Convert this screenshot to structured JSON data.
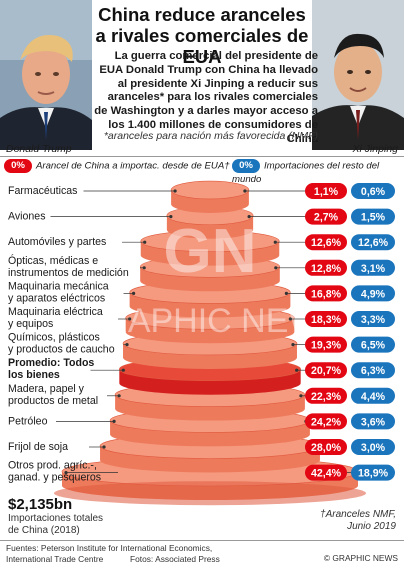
{
  "header": {
    "title": "China reduce aranceles a rivales comerciales de EUA",
    "intro": "La guerra comercial del presidente de EUA Donald Trump con China ha llevado al presidente Xi Jinping a reducir sus aranceles* para los rivales comerciales de Washington y a darles mayor acceso a los 1.400 millones de consumidores de China",
    "footnote": "*aranceles para nación más favorecida (NMF)",
    "left_name": "Donald Trump",
    "right_name": "Xi Jinping"
  },
  "legend": {
    "red_badge": "0%",
    "red_label": "Arancel de China a importac. desde de EUA†",
    "blue_badge": "0%",
    "blue_label": "Importaciones del resto del mundo"
  },
  "colors": {
    "red": "#e30613",
    "blue": "#1b75bc",
    "cake_light": "#f59a7f",
    "cake_mid": "#ee7a5c",
    "cake_dark": "#e05a3e",
    "highlight": "#d41f1f"
  },
  "chart_data": {
    "type": "table",
    "categories": [
      "Farmacéuticas",
      "Aviones",
      "Automóviles y partes",
      "Ópticas, médicas e instrumentos de medición",
      "Maquinaria mecánica y aparatos eléctricos",
      "Maquinaria eléctrica y equipos",
      "Químicos, plásticos y productos de caucho",
      "Promedio: Todos los bienes",
      "Madera, papel y productos de metal",
      "Petróleo",
      "Frijol de soja",
      "Otros prod. agríc.-, ganad. y pesqueros"
    ],
    "category_lines": [
      [
        "Farmacéuticas"
      ],
      [
        "Aviones"
      ],
      [
        "Automóviles y partes"
      ],
      [
        "Ópticas, médicas e",
        "instrumentos de medición"
      ],
      [
        "Maquinaria mecánica",
        "y aparatos eléctricos"
      ],
      [
        "Maquinaria eléctrica",
        "y equipos"
      ],
      [
        "Químicos, plásticos",
        "y productos de caucho"
      ],
      [
        "Promedio: Todos",
        "los bienes"
      ],
      [
        "Madera, papel y",
        "productos de metal"
      ],
      [
        "Petróleo"
      ],
      [
        "Frijol de soja"
      ],
      [
        "Otros prod. agríc.-,",
        "ganad. y pesqueros"
      ]
    ],
    "highlight_index": 7,
    "series": [
      {
        "name": "Arancel de China a importac. desde de EUA†",
        "values": [
          1.1,
          2.7,
          12.6,
          12.8,
          16.8,
          18.3,
          19.3,
          20.7,
          22.3,
          24.2,
          28.0,
          42.4
        ],
        "labels": [
          "1,1%",
          "2,7%",
          "12,6%",
          "12,8%",
          "16,8%",
          "18,3%",
          "19,3%",
          "20,7%",
          "22,3%",
          "24,2%",
          "28,0%",
          "42,4%"
        ]
      },
      {
        "name": "Importaciones del resto del mundo",
        "values": [
          0.6,
          1.5,
          12.6,
          3.1,
          4.9,
          3.3,
          6.5,
          6.3,
          4.4,
          3.6,
          3.0,
          18.9
        ],
        "labels": [
          "0,6%",
          "1,5%",
          "12,6%",
          "3,1%",
          "4,9%",
          "3,3%",
          "6,5%",
          "6,3%",
          "4,4%",
          "3,6%",
          "3,0%",
          "18,9%"
        ]
      }
    ]
  },
  "footer": {
    "total_value": "$2,135bn",
    "total_label_1": "Importaciones totales",
    "total_label_2": "de China (2018)",
    "note_1": "†Aranceles NMF,",
    "note_2": "Junio 2019",
    "sources_1": "Fuentes: Peterson Institute for International Economics,",
    "sources_2": "International Trade Centre",
    "photos": "Fotos: Associated Press",
    "credit": "© GRAPHIC NEWS"
  },
  "watermark": {
    "logo": "GN",
    "text": "GRAPHIC NEWS"
  }
}
